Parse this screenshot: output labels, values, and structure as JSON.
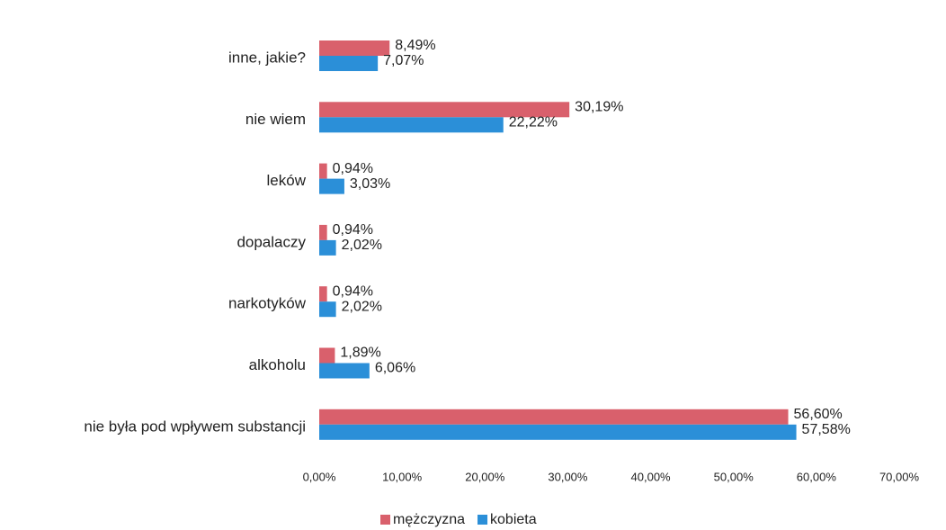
{
  "chart_data": {
    "type": "hbar",
    "categories": [
      "inne, jakie?",
      "nie wiem",
      "leków",
      "dopalaczy",
      "narkotyków",
      "alkoholu",
      "nie była pod wpływem substancji"
    ],
    "series": [
      {
        "name": "mężczyzna",
        "color": "#d9606c",
        "values": [
          8.49,
          30.19,
          0.94,
          0.94,
          0.94,
          1.89,
          56.6
        ],
        "value_labels": [
          "8,49%",
          "30,19%",
          "0,94%",
          "0,94%",
          "0,94%",
          "1,89%",
          "56,60%"
        ]
      },
      {
        "name": "kobieta",
        "color": "#2b8fd8",
        "values": [
          7.07,
          22.22,
          3.03,
          2.02,
          2.02,
          6.06,
          57.58
        ],
        "value_labels": [
          "7,07%",
          "22,22%",
          "3,03%",
          "2,02%",
          "2,02%",
          "6,06%",
          "57,58%"
        ]
      }
    ],
    "xlim": [
      0,
      70
    ],
    "xticks": [
      {
        "value": 0,
        "label": "0,00%"
      },
      {
        "value": 10,
        "label": "10,00%"
      },
      {
        "value": 20,
        "label": "20,00%"
      },
      {
        "value": 30,
        "label": "30,00%"
      },
      {
        "value": 40,
        "label": "40,00%"
      },
      {
        "value": 50,
        "label": "50,00%"
      },
      {
        "value": 60,
        "label": "60,00%"
      },
      {
        "value": 70,
        "label": "70,00%"
      }
    ],
    "legend": "bottom"
  }
}
